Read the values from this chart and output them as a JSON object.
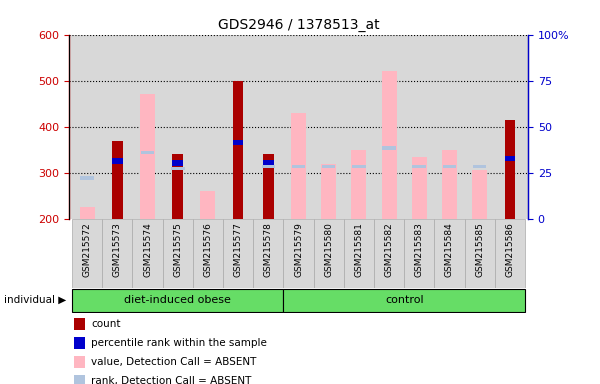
{
  "title": "GDS2946 / 1378513_at",
  "samples": [
    "GSM215572",
    "GSM215573",
    "GSM215574",
    "GSM215575",
    "GSM215576",
    "GSM215577",
    "GSM215578",
    "GSM215579",
    "GSM215580",
    "GSM215581",
    "GSM215582",
    "GSM215583",
    "GSM215584",
    "GSM215585",
    "GSM215586"
  ],
  "groups": [
    {
      "name": "diet-induced obese",
      "start": 0,
      "end": 7
    },
    {
      "name": "control",
      "start": 7,
      "end": 15
    }
  ],
  "count": [
    null,
    370,
    null,
    340,
    null,
    500,
    340,
    null,
    null,
    null,
    null,
    null,
    null,
    null,
    415
  ],
  "percentile": [
    null,
    320,
    null,
    315,
    null,
    360,
    315,
    null,
    null,
    null,
    null,
    null,
    null,
    null,
    325
  ],
  "value_absent": [
    225,
    null,
    470,
    null,
    260,
    null,
    null,
    430,
    320,
    350,
    520,
    335,
    350,
    305,
    null
  ],
  "rank_absent": [
    285,
    null,
    340,
    305,
    null,
    null,
    310,
    310,
    310,
    310,
    350,
    310,
    310,
    310,
    null
  ],
  "ylim_left": [
    200,
    600
  ],
  "ylim_right": [
    0,
    100
  ],
  "left_ticks": [
    200,
    300,
    400,
    500,
    600
  ],
  "right_ticks": [
    0,
    25,
    50,
    75,
    100
  ],
  "colors": {
    "count": "#AA0000",
    "percentile": "#0000CC",
    "value_absent": "#FFB6C1",
    "rank_absent": "#B0C4DE",
    "group_bg": "#66DD66",
    "axis_left_color": "#CC0000",
    "axis_right_color": "#0000CC",
    "bg_plot": "#d8d8d8",
    "bg_xlabels": "#d8d8d8"
  },
  "legend_items": [
    {
      "color": "#AA0000",
      "label": "count"
    },
    {
      "color": "#0000CC",
      "label": "percentile rank within the sample"
    },
    {
      "color": "#FFB6C1",
      "label": "value, Detection Call = ABSENT"
    },
    {
      "color": "#B0C4DE",
      "label": "rank, Detection Call = ABSENT"
    }
  ]
}
